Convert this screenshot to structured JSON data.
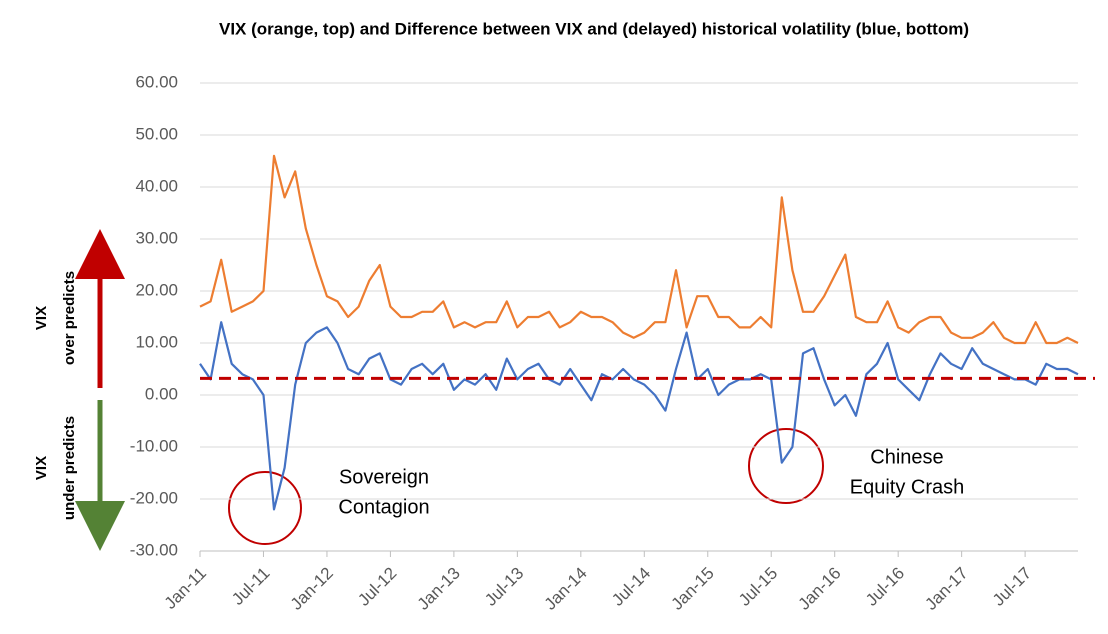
{
  "chart_data": {
    "type": "line",
    "title": "VIX (orange, top) and Difference between VIX and (delayed) historical volatility (blue, bottom)",
    "categories": [
      "Jan-11",
      null,
      null,
      null,
      null,
      null,
      "Jul-11",
      null,
      null,
      null,
      null,
      null,
      "Jan-12",
      null,
      null,
      null,
      null,
      null,
      "Jul-12",
      null,
      null,
      null,
      null,
      null,
      "Jan-13",
      null,
      null,
      null,
      null,
      null,
      "Jul-13",
      null,
      null,
      null,
      null,
      null,
      "Jan-14",
      null,
      null,
      null,
      null,
      null,
      "Jul-14",
      null,
      null,
      null,
      null,
      null,
      "Jan-15",
      null,
      null,
      null,
      null,
      null,
      "Jul-15",
      null,
      null,
      null,
      null,
      null,
      "Jan-16",
      null,
      null,
      null,
      null,
      null,
      "Jul-16",
      null,
      null,
      null,
      null,
      null,
      "Jan-17",
      null,
      null,
      null,
      null,
      null,
      "Jul-17",
      null,
      null,
      null,
      null,
      null
    ],
    "series": [
      {
        "name": "VIX",
        "color": "#ed7d31",
        "values": [
          17,
          18,
          26,
          16,
          17,
          18,
          20,
          46,
          38,
          43,
          32,
          25,
          19,
          18,
          15,
          17,
          22,
          25,
          17,
          15,
          15,
          16,
          16,
          18,
          13,
          14,
          13,
          14,
          14,
          18,
          13,
          15,
          15,
          16,
          13,
          14,
          16,
          15,
          15,
          14,
          12,
          11,
          12,
          14,
          14,
          24,
          13,
          19,
          19,
          15,
          15,
          13,
          13,
          15,
          13,
          38,
          24,
          16,
          16,
          19,
          23,
          27,
          15,
          14,
          14,
          18,
          13,
          12,
          14,
          15,
          15,
          12,
          11,
          11,
          12,
          14,
          11,
          10,
          10,
          14,
          10,
          10,
          11,
          10
        ]
      },
      {
        "name": "Difference",
        "color": "#4472c4",
        "values": [
          6,
          3,
          14,
          6,
          4,
          3,
          0,
          -22,
          -14,
          2,
          10,
          12,
          13,
          10,
          5,
          4,
          7,
          8,
          3,
          2,
          5,
          6,
          4,
          6,
          1,
          3,
          2,
          4,
          1,
          7,
          3,
          5,
          6,
          3,
          2,
          5,
          2,
          -1,
          4,
          3,
          5,
          3,
          2,
          0,
          -3,
          5,
          12,
          3,
          5,
          0,
          2,
          3,
          3,
          4,
          3,
          -13,
          -10,
          8,
          9,
          3,
          -2,
          0,
          -4,
          4,
          6,
          10,
          3,
          1,
          -1,
          4,
          8,
          6,
          5,
          9,
          6,
          5,
          4,
          3,
          3,
          2,
          6,
          5,
          5,
          4
        ]
      }
    ],
    "ylim": [
      -30,
      60
    ],
    "yticks": [
      {
        "value": -30,
        "label": "-30.00"
      },
      {
        "value": -20,
        "label": "-20.00"
      },
      {
        "value": -10,
        "label": "-10.00"
      },
      {
        "value": 0,
        "label": "0.00"
      },
      {
        "value": 10,
        "label": "10.00"
      },
      {
        "value": 20,
        "label": "20.00"
      },
      {
        "value": 30,
        "label": "30.00"
      },
      {
        "value": 40,
        "label": "40.00"
      },
      {
        "value": 50,
        "label": "50.00"
      },
      {
        "value": 60,
        "label": "60.00"
      }
    ],
    "grid": true,
    "reference_line": {
      "value": 3.2,
      "color": "#c00000"
    },
    "annotations": [
      {
        "lines": [
          "Sovereign",
          "Contagion"
        ]
      },
      {
        "lines": [
          "Chinese",
          "Equity Crash"
        ]
      }
    ],
    "side_labels": [
      {
        "lines": [
          "VIX",
          "over predicts"
        ],
        "color": "#c00000"
      },
      {
        "lines": [
          "VIX",
          "under predicts"
        ],
        "color": "#548235"
      }
    ]
  }
}
